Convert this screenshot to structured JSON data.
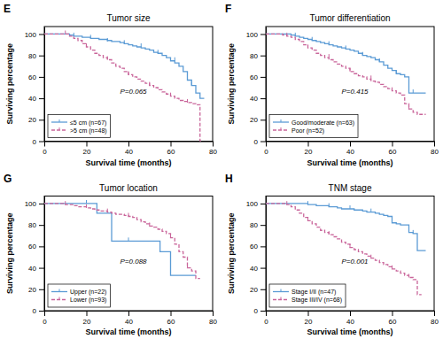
{
  "chart_data": [
    {
      "type": "step",
      "panel_label": "E",
      "title": "Tumor size",
      "annotations": [
        "P=0.065"
      ],
      "x_label": "Survival time (months)",
      "y_label": "Surviving percentage",
      "xlim": [
        0,
        80
      ],
      "ylim": [
        0,
        107
      ],
      "xticks": [
        0,
        20,
        40,
        60,
        80
      ],
      "yticks": [
        0,
        20,
        40,
        60,
        80,
        100
      ],
      "grid": false,
      "legend": "lower left",
      "series": [
        {
          "name": "≤5 cm (n=67)",
          "color": "#5b9bd5",
          "line_style": "solid",
          "x": [
            0,
            10,
            12,
            14,
            18,
            22,
            24,
            26,
            28,
            30,
            32,
            34,
            36,
            38,
            40,
            42,
            44,
            46,
            48,
            50,
            52,
            54,
            56,
            58,
            60,
            62,
            64,
            66,
            68,
            70,
            72,
            74,
            76
          ],
          "values": [
            100,
            100,
            99,
            98,
            97,
            96,
            96,
            95,
            95,
            94,
            93,
            93,
            92,
            91,
            90,
            89,
            88,
            87,
            86,
            85,
            83,
            82,
            80,
            78,
            75,
            73,
            70,
            65,
            57,
            52,
            45,
            40,
            40
          ],
          "censor_x": [
            14,
            22,
            30,
            38,
            46,
            54,
            62,
            70
          ],
          "censor_values": [
            98,
            96,
            93,
            91,
            88,
            82,
            75,
            52
          ]
        },
        {
          "name": ">5 cm (n=48)",
          "color": "#c9659a",
          "line_style": "dashed",
          "x": [
            0,
            8,
            10,
            12,
            14,
            16,
            18,
            20,
            22,
            24,
            26,
            28,
            30,
            32,
            34,
            36,
            38,
            40,
            42,
            44,
            46,
            48,
            50,
            52,
            54,
            56,
            58,
            60,
            62,
            64,
            66,
            68,
            70,
            72,
            74,
            75
          ],
          "values": [
            100,
            100,
            100,
            98,
            96,
            94,
            91,
            88,
            85,
            82,
            80,
            78,
            76,
            73,
            70,
            68,
            65,
            62,
            60,
            58,
            56,
            54,
            52,
            50,
            48,
            46,
            44,
            42,
            40,
            38,
            37,
            36,
            35,
            34,
            0,
            0
          ],
          "censor_x": [
            10,
            20,
            30,
            40,
            50,
            60,
            68
          ],
          "censor_values": [
            100,
            88,
            76,
            62,
            52,
            42,
            36
          ]
        }
      ]
    },
    {
      "type": "step",
      "panel_label": "F",
      "title": "Tumor differentiation",
      "annotations": [
        "P=0.415"
      ],
      "x_label": "Survival time (months)",
      "y_label": "Surviving percentage",
      "xlim": [
        0,
        80
      ],
      "ylim": [
        0,
        107
      ],
      "xticks": [
        0,
        20,
        40,
        60,
        80
      ],
      "yticks": [
        0,
        20,
        40,
        60,
        80,
        100
      ],
      "grid": false,
      "legend": "lower left",
      "series": [
        {
          "name": "Good/moderate (n=63)",
          "color": "#5b9bd5",
          "line_style": "solid",
          "x": [
            0,
            10,
            12,
            14,
            16,
            18,
            20,
            22,
            24,
            26,
            28,
            30,
            32,
            34,
            36,
            38,
            40,
            42,
            44,
            46,
            48,
            50,
            52,
            54,
            56,
            58,
            60,
            62,
            64,
            66,
            68,
            70,
            72,
            74,
            76
          ],
          "values": [
            100,
            100,
            99,
            98,
            97,
            96,
            95,
            94,
            93,
            92,
            91,
            90,
            89,
            88,
            87,
            86,
            85,
            84,
            82,
            80,
            79,
            78,
            76,
            74,
            71,
            68,
            66,
            63,
            62,
            60,
            45,
            45,
            45,
            45,
            45
          ],
          "censor_x": [
            14,
            22,
            30,
            38,
            46,
            54,
            62,
            70
          ],
          "censor_values": [
            98,
            94,
            90,
            86,
            80,
            74,
            63,
            45
          ]
        },
        {
          "name": "Poor (n=52)",
          "color": "#c9659a",
          "line_style": "dashed",
          "x": [
            0,
            8,
            10,
            12,
            14,
            16,
            18,
            20,
            22,
            24,
            26,
            28,
            30,
            32,
            34,
            36,
            38,
            40,
            42,
            44,
            46,
            48,
            50,
            52,
            54,
            56,
            58,
            60,
            62,
            64,
            66,
            68,
            70,
            72,
            74,
            76
          ],
          "values": [
            100,
            99,
            98,
            97,
            95,
            93,
            90,
            87,
            85,
            82,
            80,
            78,
            76,
            74,
            72,
            70,
            68,
            65,
            63,
            61,
            60,
            58,
            56,
            55,
            53,
            51,
            49,
            47,
            45,
            43,
            35,
            30,
            27,
            25,
            25,
            25
          ],
          "censor_x": [
            10,
            20,
            30,
            40,
            50,
            60,
            68
          ],
          "censor_values": [
            98,
            87,
            78,
            65,
            58,
            47,
            30
          ]
        }
      ]
    },
    {
      "type": "step",
      "panel_label": "G",
      "title": "Tumor location",
      "annotations": [
        "P=0.088"
      ],
      "x_label": "Survival time (months)",
      "y_label": "Surviving percentage",
      "xlim": [
        0,
        80
      ],
      "ylim": [
        0,
        107
      ],
      "xticks": [
        0,
        20,
        40,
        60,
        80
      ],
      "yticks": [
        0,
        20,
        40,
        60,
        80,
        100
      ],
      "grid": false,
      "legend": "lower left",
      "series": [
        {
          "name": "Upper (n=22)",
          "color": "#5b9bd5",
          "line_style": "solid",
          "x": [
            0,
            10,
            18,
            20,
            25,
            30,
            32,
            38,
            40,
            55,
            60,
            65,
            70,
            72
          ],
          "values": [
            100,
            100,
            100,
            100,
            91,
            91,
            65,
            65,
            65,
            55,
            33,
            33,
            33,
            33
          ],
          "censor_x": [
            20,
            40,
            60
          ],
          "censor_values": [
            100,
            65,
            33
          ]
        },
        {
          "name": "Lower (n=93)",
          "color": "#c9659a",
          "line_style": "dashed",
          "x": [
            0,
            6,
            8,
            10,
            12,
            14,
            16,
            18,
            20,
            22,
            24,
            26,
            28,
            30,
            32,
            34,
            36,
            38,
            40,
            42,
            44,
            46,
            48,
            50,
            52,
            54,
            56,
            58,
            60,
            62,
            64,
            66,
            68,
            70,
            72,
            74
          ],
          "values": [
            100,
            100,
            100,
            99,
            99,
            98,
            97,
            97,
            96,
            95,
            94,
            93,
            93,
            92,
            91,
            90,
            90,
            89,
            88,
            87,
            85,
            83,
            81,
            79,
            78,
            76,
            74,
            72,
            68,
            62,
            55,
            50,
            40,
            37,
            30,
            30
          ],
          "censor_x": [
            10,
            20,
            30,
            40,
            50,
            60,
            68
          ],
          "censor_values": [
            99,
            96,
            92,
            88,
            79,
            68,
            40
          ]
        }
      ]
    },
    {
      "type": "step",
      "panel_label": "H",
      "title": "TNM stage",
      "annotations": [
        "P=0.001"
      ],
      "x_label": "Survival time (months)",
      "y_label": "Surviving percentage",
      "xlim": [
        0,
        80
      ],
      "ylim": [
        0,
        107
      ],
      "xticks": [
        0,
        20,
        40,
        60,
        80
      ],
      "yticks": [
        0,
        20,
        40,
        60,
        80,
        100
      ],
      "grid": false,
      "legend": "lower left",
      "series": [
        {
          "name": "Stage I/II (n=47)",
          "color": "#5b9bd5",
          "line_style": "solid",
          "x": [
            0,
            14,
            18,
            20,
            22,
            24,
            26,
            30,
            32,
            34,
            36,
            38,
            40,
            42,
            44,
            46,
            48,
            50,
            52,
            54,
            56,
            58,
            60,
            62,
            64,
            66,
            68,
            70,
            72,
            74,
            76
          ],
          "values": [
            100,
            100,
            100,
            99,
            99,
            98,
            98,
            97,
            97,
            96,
            95,
            95,
            95,
            94,
            94,
            93,
            92,
            92,
            91,
            90,
            89,
            88,
            82,
            81,
            80,
            80,
            73,
            72,
            56,
            56,
            56
          ],
          "censor_x": [
            20,
            30,
            40,
            50,
            60,
            70
          ],
          "censor_values": [
            99,
            97,
            95,
            92,
            82,
            72
          ]
        },
        {
          "name": "Stage III/IV (n=68)",
          "color": "#c9659a",
          "line_style": "dashed",
          "x": [
            0,
            8,
            10,
            12,
            14,
            16,
            18,
            20,
            22,
            24,
            26,
            28,
            30,
            32,
            34,
            36,
            38,
            40,
            42,
            44,
            46,
            48,
            50,
            52,
            54,
            56,
            58,
            60,
            62,
            64,
            66,
            68,
            70,
            72,
            74
          ],
          "values": [
            100,
            100,
            99,
            97,
            94,
            91,
            87,
            84,
            81,
            78,
            75,
            73,
            71,
            69,
            67,
            64,
            62,
            59,
            57,
            55,
            53,
            51,
            49,
            47,
            45,
            43,
            41,
            39,
            37,
            35,
            33,
            31,
            29,
            15,
            15
          ],
          "censor_x": [
            10,
            20,
            30,
            40,
            50,
            60,
            68
          ],
          "censor_values": [
            99,
            84,
            71,
            59,
            49,
            39,
            31
          ]
        }
      ]
    }
  ]
}
